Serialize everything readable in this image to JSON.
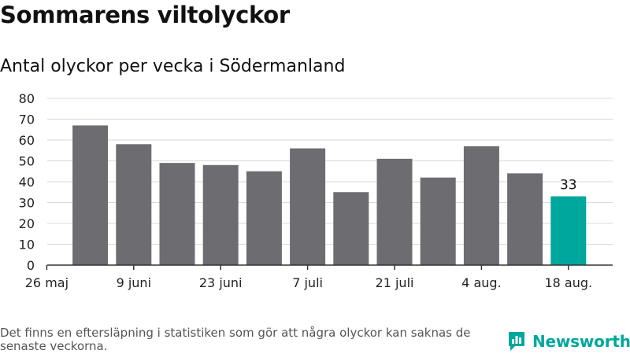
{
  "header": {
    "title": "Sommarens viltolyckor",
    "subtitle": "Antal olyckor per vecka i Södermanland"
  },
  "footer": {
    "note": "Det finns en eftersläpning i statistiken som gör att några olyckor kan saknas de senaste veckorna.",
    "brand": "Newsworthy"
  },
  "colors": {
    "bar": "#6d6c70",
    "highlight": "#00a79d",
    "grid": "#d9d9d9",
    "axis": "#333333"
  },
  "chart_data": {
    "type": "bar",
    "title": "",
    "xlabel": "",
    "ylabel": "",
    "ylim": [
      0,
      80
    ],
    "yticks": [
      0,
      10,
      20,
      30,
      40,
      50,
      60,
      70,
      80
    ],
    "grid": true,
    "x_ticks": [
      "26 maj",
      "9 juni",
      "23 juni",
      "7 juli",
      "21 juli",
      "4 aug.",
      "18 aug."
    ],
    "values": [
      67,
      58,
      49,
      48,
      45,
      56,
      35,
      51,
      42,
      57,
      44,
      33
    ],
    "highlight_index": 11,
    "data_labels": [
      {
        "index": 11,
        "text": "33"
      }
    ]
  }
}
